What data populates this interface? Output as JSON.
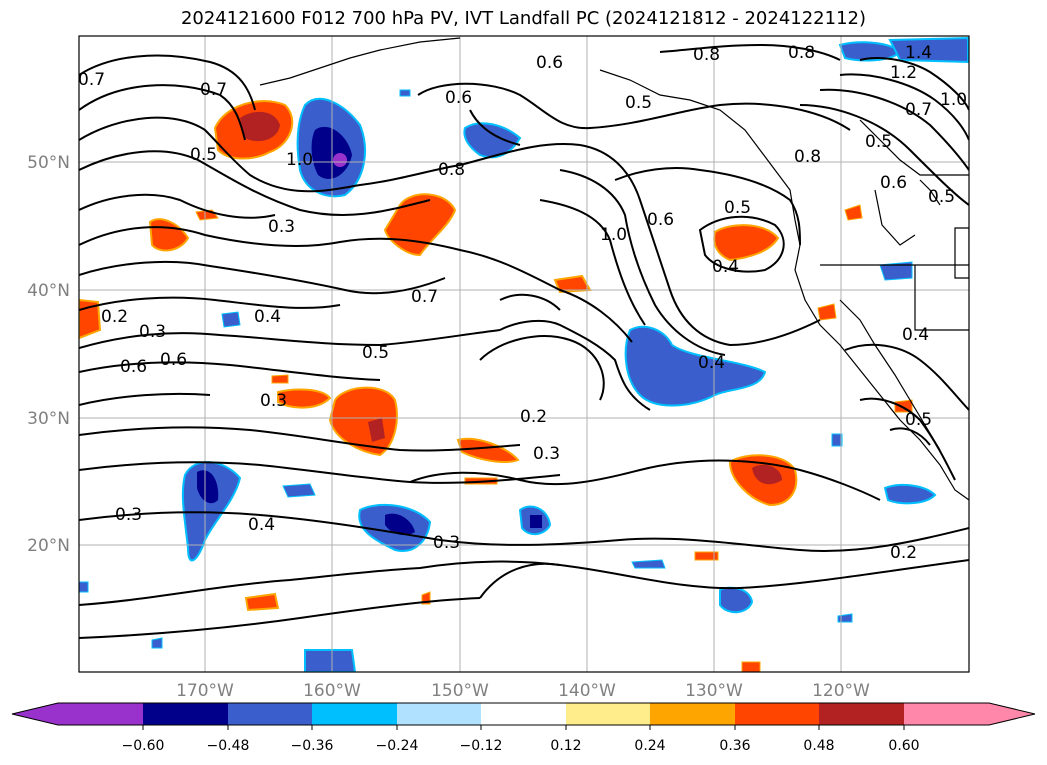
{
  "title": "2024121600 F012 700 hPa PV, IVT Landfall PC (2024121812 - 2024122112)",
  "map": {
    "lat_labels": [
      "50°N",
      "40°N",
      "30°N",
      "20°N"
    ],
    "lon_labels": [
      "170°W",
      "160°W",
      "150°W",
      "140°W",
      "130°W",
      "120°W"
    ],
    "contour_labels": [
      "0.6",
      "0.8",
      "0.8",
      "1.4",
      "1.2",
      "1.0",
      "0.7",
      "0.5",
      "0.5",
      "0.6",
      "0.5",
      "0.7",
      "0.5",
      "1.0",
      "0.8",
      "0.7",
      "0.6",
      "0.5",
      "0.8",
      "0.3",
      "0.7",
      "0.2",
      "0.3",
      "0.4",
      "0.5",
      "0.6",
      "1.0",
      "0.6",
      "0.4",
      "0.4",
      "0.3",
      "0.2",
      "0.3",
      "0.3",
      "0.4",
      "0.3",
      "0.2",
      "0.5",
      "0.4",
      "0.6"
    ]
  },
  "colorbar": {
    "ticks": [
      "−0.60",
      "−0.48",
      "−0.36",
      "−0.24",
      "−0.12",
      "0.12",
      "0.24",
      "0.36",
      "0.48",
      "0.60"
    ],
    "colors": [
      "#9932cc",
      "#00008b",
      "#3a5fcd",
      "#00bfff",
      "#b0e2ff",
      "#ffffff",
      "#ffec8b",
      "#ffa500",
      "#ff4500",
      "#b22222",
      "#ff88aa"
    ]
  }
}
